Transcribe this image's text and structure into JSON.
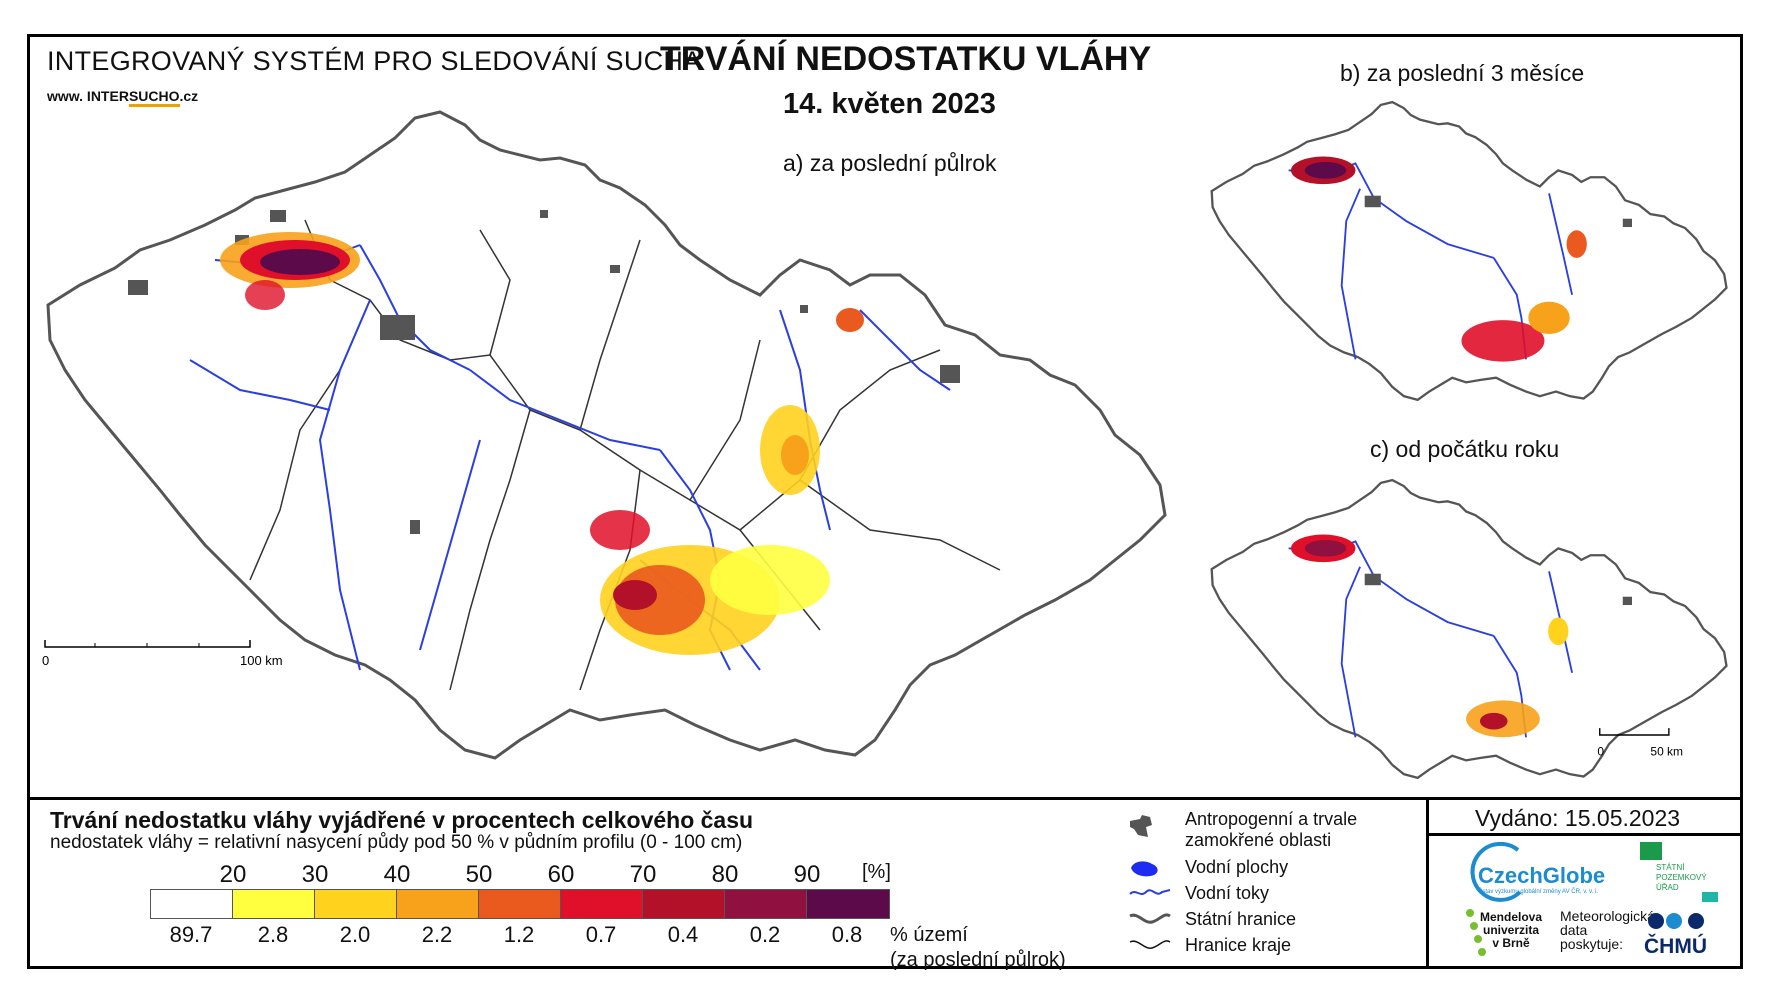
{
  "header": {
    "system_name": "INTEGROVANÝ SYSTÉM PRO SLEDOVÁNÍ SUCHA",
    "website_prefix": "www. INTER",
    "website_mid": "SUCHO",
    "website_suffix": ".cz",
    "title": "TRVÁNÍ NEDOSTATKU VLÁHY",
    "date": "14. květen 2023"
  },
  "maps": {
    "a_label": "a) za poslední půlrok",
    "b_label": "b) za poslední 3 měsíce",
    "c_label": "c) od počátku roku",
    "scale_main_zero": "0",
    "scale_main_end": "100 km",
    "scale_small_zero": "0",
    "scale_small_end": "50 km"
  },
  "legend": {
    "title": "Trvání nedostatku vláhy vyjádřené v procentech celkového času",
    "subtitle": "nedostatek vláhy = relativní nasycení půdy pod 50 % v půdním profilu (0 - 100 cm)",
    "ticks": [
      "20",
      "30",
      "40",
      "50",
      "60",
      "70",
      "80",
      "90"
    ],
    "unit": "[%]",
    "classes": [
      {
        "color": "#ffffff",
        "pct": "89.7"
      },
      {
        "color": "#ffff40",
        "pct": "2.8"
      },
      {
        "color": "#ffd21e",
        "pct": "2.0"
      },
      {
        "color": "#f7a21a",
        "pct": "2.2"
      },
      {
        "color": "#ea5a1e",
        "pct": "1.2"
      },
      {
        "color": "#e0102a",
        "pct": "0.7"
      },
      {
        "color": "#b3102a",
        "pct": "0.4"
      },
      {
        "color": "#901040",
        "pct": "0.2"
      },
      {
        "color": "#5c0a4a",
        "pct": "0.8"
      }
    ],
    "pct_label_line1": "% území",
    "pct_label_line2": "(za poslední půlrok)",
    "items": [
      {
        "icon": "anthropogenic-area-icon",
        "label_line1": "Antropogenní a trvale",
        "label_line2": "zamokřené oblasti"
      },
      {
        "icon": "water-body-icon",
        "label": "Vodní plochy"
      },
      {
        "icon": "river-icon",
        "label": "Vodní toky"
      },
      {
        "icon": "state-border-icon",
        "label": "Státní hranice"
      },
      {
        "icon": "region-border-icon",
        "label": "Hranice kraje"
      }
    ]
  },
  "footer": {
    "issued": "Vydáno: 15.05.2023",
    "czechglobe": "CzechGlobe",
    "czechglobe_sub": "Ústav výzkumu globální změny AV ČR, v. v. i.",
    "spu_line1": "STÁTNÍ",
    "spu_line2": "POZEMKOVÝ",
    "spu_line3": "ÚŘAD",
    "mendel_line1": "Mendelova",
    "mendel_line2": "univerzita",
    "mendel_line3": "v Brně",
    "meteo_line1": "Meteorologická",
    "meteo_line2": "data",
    "meteo_line3": "poskytuje:",
    "chmu": "ČHMÚ"
  },
  "colors": {
    "river": "#2a3fe0",
    "border": "#555555",
    "anthropogenic": "#555555"
  }
}
